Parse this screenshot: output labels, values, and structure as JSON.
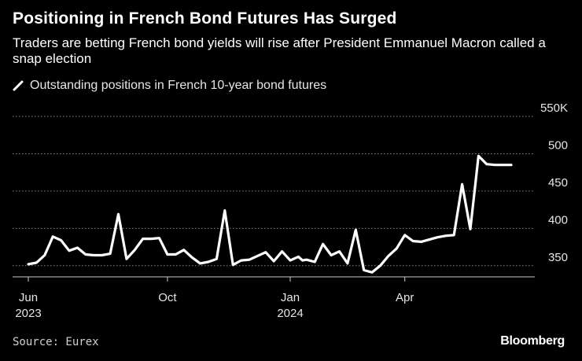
{
  "chart_data": {
    "type": "line",
    "title": "Positioning in French Bond Futures Has Surged",
    "subtitle": "Traders are betting French bond yields will rise after President Emmanuel Macron called a snap election",
    "legend": [
      {
        "label": "Outstanding positions in French 10-year bond futures",
        "color": "#ffffff"
      }
    ],
    "y_unit_suffix": "K",
    "ylim": [
      335,
      550
    ],
    "y_ticks": [
      {
        "value": 550,
        "label": "550K"
      },
      {
        "value": 500,
        "label": "500"
      },
      {
        "value": 450,
        "label": "450"
      },
      {
        "value": 400,
        "label": "400"
      },
      {
        "value": 350,
        "label": "350"
      }
    ],
    "grid": true,
    "x_ticks": [
      {
        "week": 0,
        "line1": "Jun",
        "line2": "2023"
      },
      {
        "week": 17,
        "line1": "Oct",
        "line2": ""
      },
      {
        "week": 32,
        "line1": "Jan",
        "line2": "2024"
      },
      {
        "week": 46,
        "line1": "Apr",
        "line2": ""
      }
    ],
    "series": [
      {
        "name": "Outstanding positions in French 10-year bond futures",
        "color": "#ffffff",
        "x_unit": "week index from early June 2023",
        "x": [
          0,
          1,
          2,
          3,
          4,
          5,
          6,
          7,
          8,
          9,
          10,
          11,
          12,
          13,
          14,
          15,
          16,
          17,
          18,
          19,
          20,
          21,
          22,
          23,
          24,
          25,
          26,
          27,
          28,
          29,
          30,
          31,
          32,
          33,
          33.5,
          34,
          35,
          36,
          37,
          38,
          39,
          40,
          41,
          42,
          43,
          44,
          45,
          46,
          47,
          48,
          49,
          50,
          51,
          52,
          53,
          54,
          55,
          56,
          57,
          58,
          59
        ],
        "values": [
          352,
          354,
          364,
          389,
          384,
          370,
          374,
          365,
          364,
          364,
          366,
          419,
          359,
          371,
          386,
          386,
          387,
          365,
          365,
          371,
          361,
          353,
          355,
          359,
          424,
          351,
          357,
          358,
          363,
          368,
          356,
          369,
          357,
          362,
          357,
          358,
          355,
          379,
          364,
          369,
          353,
          398,
          344,
          341,
          350,
          363,
          373,
          391,
          383,
          382,
          385,
          388,
          390,
          391,
          459,
          399,
          497,
          486,
          485,
          485,
          485
        ]
      }
    ]
  },
  "source": "Source: Eurex",
  "brand": "Bloomberg"
}
